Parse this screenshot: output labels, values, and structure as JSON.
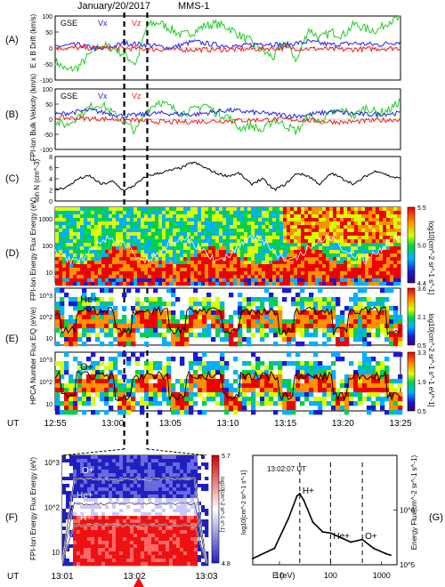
{
  "header": {
    "date": "January/20/2017",
    "spacecraft": "MMS-1"
  },
  "time_axis": {
    "label": "UT",
    "ticks": [
      "12:55",
      "13:00",
      "13:05",
      "13:10",
      "13:15",
      "13:20",
      "13:25"
    ],
    "range_minutes": [
      0,
      30
    ],
    "dashed_lines_minutes": [
      6.0,
      8.0
    ]
  },
  "chart_data": [
    {
      "panel": "(A)",
      "type": "line",
      "ylabel": "E x B Drift (km/s)",
      "ylim": [
        -100,
        100
      ],
      "yticks": [
        "100",
        "50",
        "0",
        "-50",
        "-100"
      ],
      "legend": [
        "GSE",
        "Vx",
        "Vz"
      ],
      "series": [
        {
          "name": "GSE",
          "color": "#22cc22",
          "x": [
            0,
            1,
            2,
            3,
            4,
            5,
            6,
            7,
            8,
            9,
            10,
            11,
            12,
            13,
            14,
            15,
            16,
            17,
            18,
            19,
            20,
            21,
            22,
            23,
            24,
            25,
            26,
            27,
            28,
            29,
            30
          ],
          "values": [
            -40,
            -70,
            -60,
            -20,
            10,
            0,
            -20,
            -50,
            70,
            80,
            60,
            40,
            50,
            70,
            75,
            65,
            40,
            20,
            -10,
            -30,
            20,
            -40,
            60,
            30,
            50,
            40,
            75,
            60,
            55,
            85,
            90
          ]
        },
        {
          "name": "Vx",
          "color": "#2222ee",
          "x": [
            0,
            2,
            4,
            6,
            8,
            10,
            12,
            14,
            16,
            18,
            20,
            22,
            24,
            26,
            28,
            30
          ],
          "values": [
            5,
            10,
            -5,
            15,
            10,
            0,
            20,
            10,
            5,
            15,
            10,
            20,
            10,
            15,
            10,
            20
          ]
        },
        {
          "name": "Vz",
          "color": "#ee2222",
          "x": [
            0,
            5,
            10,
            15,
            20,
            25,
            30
          ],
          "values": [
            0,
            0,
            -5,
            -5,
            0,
            -5,
            0
          ]
        }
      ]
    },
    {
      "panel": "(B)",
      "type": "line",
      "ylabel": "FPI-Ion Bulk Velocity (km/s)",
      "ylim": [
        -100,
        100
      ],
      "yticks": [
        "100",
        "50",
        "0",
        "-50",
        "-100"
      ],
      "legend": [
        "GSE",
        "Vx",
        "Vz"
      ],
      "series": [
        {
          "name": "GSE",
          "color": "#22cc22",
          "x": [
            0,
            1,
            2,
            3,
            4,
            5,
            6,
            7,
            8,
            9,
            10,
            11,
            12,
            13,
            14,
            15,
            16,
            17,
            18,
            19,
            20,
            21,
            22,
            23,
            24,
            25,
            26,
            27,
            28,
            29,
            30
          ],
          "values": [
            -10,
            -20,
            10,
            40,
            50,
            20,
            -10,
            -40,
            30,
            60,
            40,
            20,
            30,
            50,
            20,
            10,
            -30,
            -20,
            -40,
            0,
            -20,
            -40,
            10,
            -10,
            20,
            30,
            10,
            40,
            20,
            30,
            60
          ]
        },
        {
          "name": "Vx",
          "color": "#2222ee",
          "x": [
            0,
            3,
            6,
            9,
            12,
            15,
            18,
            21,
            24,
            27,
            30
          ],
          "values": [
            15,
            30,
            10,
            20,
            15,
            30,
            20,
            10,
            25,
            15,
            20
          ]
        },
        {
          "name": "Vz",
          "color": "#ee2222",
          "x": [
            0,
            5,
            10,
            15,
            20,
            25,
            30
          ],
          "values": [
            5,
            0,
            -10,
            -5,
            0,
            -10,
            0
          ]
        }
      ]
    },
    {
      "panel": "(C)",
      "type": "line",
      "ylabel": "Ion N (cm^-3)",
      "ylim": [
        0,
        8
      ],
      "yticks": [
        "8",
        "6",
        "4",
        "2",
        "0"
      ],
      "series": [
        {
          "name": "",
          "color": "#000000",
          "x": [
            0,
            1,
            2,
            3,
            4,
            5,
            6,
            7,
            8,
            9,
            10,
            11,
            12,
            13,
            14,
            15,
            16,
            17,
            18,
            19,
            20,
            21,
            22,
            23,
            24,
            25,
            26,
            27,
            28,
            29,
            30
          ],
          "values": [
            2,
            2.5,
            4,
            4.5,
            3,
            3.5,
            1.8,
            3,
            4.5,
            5,
            5.5,
            6,
            7,
            6,
            5,
            4.5,
            5,
            3,
            4,
            2,
            3,
            5,
            4.5,
            3,
            5,
            4,
            3,
            4.5,
            5.5,
            4.5,
            4
          ]
        }
      ]
    },
    {
      "panel": "(D)",
      "type": "heatmap",
      "ylabel": "FPI-Ion Energy Flux Energy (eV)",
      "yticks": [
        "1000",
        "100",
        "10"
      ],
      "colorbar": {
        "label": "log10[cm^-2 sr^-1 s^-1]",
        "ticks": [
          "5.5",
          "5.0",
          "4.4"
        ]
      }
    },
    {
      "panel": "(E)",
      "type": "heatmap",
      "ylabel": "HPCA Number Flux E/Q (eV/e)",
      "sub_panels": [
        {
          "species": "He+",
          "yticks": [
            "10^3",
            "10^2",
            "10"
          ],
          "colorbar": {
            "ticks": [
              "3.6",
              "2.1",
              "0.5"
            ]
          }
        },
        {
          "species": "O+",
          "yticks": [
            "10^3",
            "10^2",
            "10"
          ],
          "colorbar": {
            "ticks": [
              "3.3",
              "1.9",
              "0.5"
            ]
          }
        }
      ],
      "colorbar_label": "log10[cm^-2 sr^-1 s^-1 eV^-1]"
    },
    {
      "panel": "(F)",
      "type": "heatmap",
      "ylabel": "FPI-Ion Energy Flux Energy (eV)",
      "yticks": [
        "10^3",
        "10^2",
        "10"
      ],
      "xticks": [
        "13:01",
        "13:02",
        "13:03"
      ],
      "species_labels": [
        "O+",
        "He+",
        "H+"
      ],
      "colorbar": {
        "label": "log10[cm^-2 sr^-1 s^-1]",
        "ticks": [
          "5.7",
          "4.8"
        ]
      }
    },
    {
      "panel": "(G)",
      "type": "line",
      "timestamp": "13:02:07 UT",
      "xlabel": "E (eV)",
      "xscale": "log",
      "yscale": "log",
      "xlim": [
        3,
        2000
      ],
      "xticks": [
        "10",
        "100",
        "1000"
      ],
      "ylim": [
        100000,
        10000000
      ],
      "yticks": [
        "10^6",
        "10^5"
      ],
      "ylabel_left": "log10[cm^-2 sr^-1 s^-1]",
      "ylabel_right": "Energy Flux(cm^-2 sr^-1 s^-1)",
      "peaks": [
        {
          "label": "H+",
          "x": 25
        },
        {
          "label": "He+",
          "x": 100
        },
        {
          "label": "O+",
          "x": 420
        }
      ],
      "series": [
        {
          "name": "",
          "color": "#000000",
          "x": [
            3,
            8,
            15,
            22,
            25,
            30,
            45,
            70,
            100,
            150,
            250,
            420,
            700,
            1200,
            1500
          ],
          "values": [
            130000,
            200000,
            700000,
            1800000,
            2000000,
            1500000,
            600000,
            400000,
            380000,
            320000,
            260000,
            290000,
            200000,
            160000,
            150000
          ]
        }
      ]
    }
  ]
}
